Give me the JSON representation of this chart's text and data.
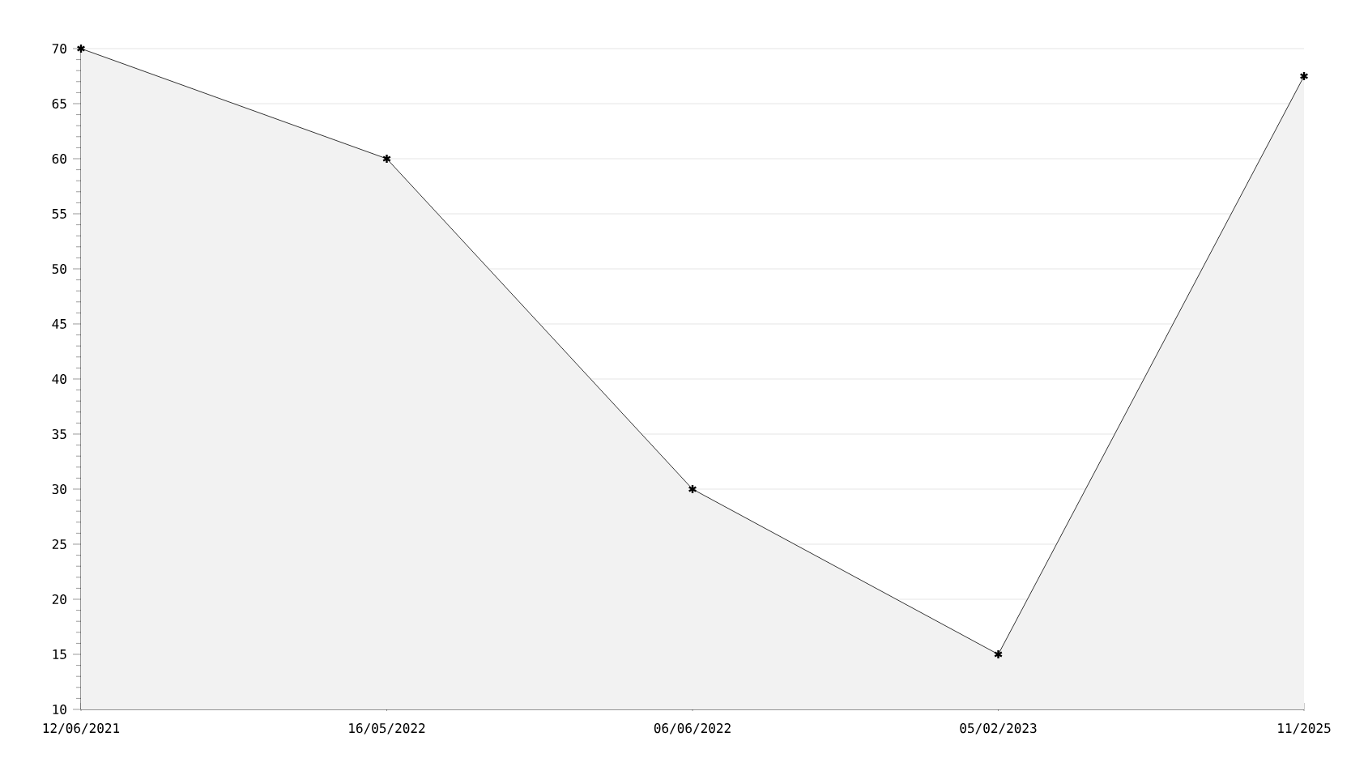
{
  "chart_data": {
    "type": "area",
    "categories": [
      "12/06/2021",
      "16/05/2022",
      "06/06/2022",
      "05/02/2023",
      "11/2025"
    ],
    "values": [
      70,
      60,
      30,
      15,
      67.5
    ],
    "color": "#f2f2f2",
    "marker": "cross",
    "ylim": [
      10,
      70
    ],
    "yticks": [
      10,
      15,
      20,
      25,
      30,
      35,
      40,
      45,
      50,
      55,
      60,
      65,
      70
    ],
    "grid": "y"
  }
}
